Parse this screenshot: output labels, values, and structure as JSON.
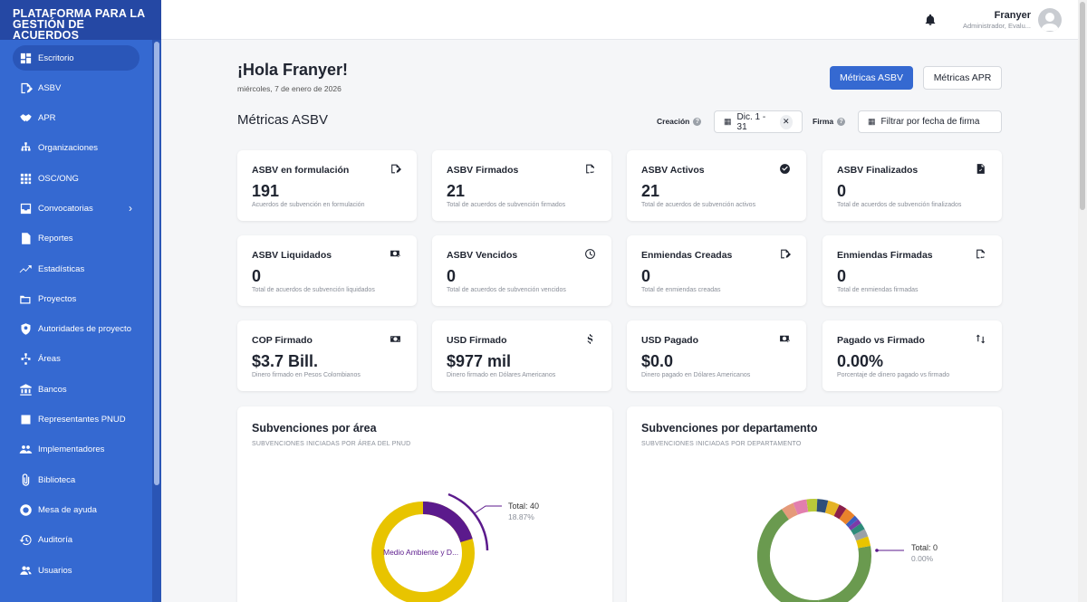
{
  "brand": {
    "line1": "PLATAFORMA PARA LA",
    "line2": "GESTIÓN DE ACUERDOS"
  },
  "sidebar": {
    "items": [
      {
        "label": "Escritorio",
        "icon": "dashboard-icon",
        "active": true
      },
      {
        "label": "ASBV",
        "icon": "edit-doc-icon"
      },
      {
        "label": "APR",
        "icon": "handshake-icon"
      },
      {
        "label": "Organizaciones",
        "icon": "org-chart-icon"
      },
      {
        "label": "OSC/ONG",
        "icon": "grid-icon"
      },
      {
        "label": "Convocatorias",
        "icon": "inbox-icon"
      },
      {
        "label": "Reportes",
        "icon": "report-icon"
      },
      {
        "label": "Estadísticas",
        "icon": "trend-icon"
      },
      {
        "label": "Proyectos",
        "icon": "folders-icon"
      },
      {
        "label": "Autoridades de proyecto",
        "icon": "shield-icon"
      },
      {
        "label": "Áreas",
        "icon": "hierarchy-icon"
      },
      {
        "label": "Bancos",
        "icon": "bank-icon"
      },
      {
        "label": "Representantes PNUD",
        "icon": "badge-icon"
      },
      {
        "label": "Implementadores",
        "icon": "people-icon"
      },
      {
        "label": "Biblioteca",
        "icon": "paperclip-icon"
      },
      {
        "label": "Mesa de ayuda",
        "icon": "support-icon"
      },
      {
        "label": "Auditoría",
        "icon": "history-icon"
      },
      {
        "label": "Usuarios",
        "icon": "users-icon"
      }
    ]
  },
  "topbar": {
    "user_name": "Franyer",
    "user_role": "Administrador, Evalu..."
  },
  "main": {
    "greeting": "¡Hola Franyer!",
    "date": "miércoles, 7 de enero de 2026",
    "btn_asbv": "Métricas ASBV",
    "btn_apr": "Métricas APR",
    "section_title": "Métricas ASBV",
    "filter_creacion_label": "Creación",
    "filter_creacion_value": "Dic. 1 - 31",
    "filter_firma_label": "Firma",
    "filter_firma_placeholder": "Filtrar por fecha de firma"
  },
  "cards": [
    {
      "title": "ASBV en formulación",
      "value": "191",
      "sub": "Acuerdos de subvención en formulación",
      "icon": "edit-doc-icon"
    },
    {
      "title": "ASBV Firmados",
      "value": "21",
      "sub": "Total de acuerdos de subvención firmados",
      "icon": "signed-doc-icon"
    },
    {
      "title": "ASBV Activos",
      "value": "21",
      "sub": "Total de acuerdos de subvención activos",
      "icon": "check-circle-icon"
    },
    {
      "title": "ASBV Finalizados",
      "value": "0",
      "sub": "Total de acuerdos de subvención finalizados",
      "icon": "finished-doc-icon"
    },
    {
      "title": "ASBV Liquidados",
      "value": "0",
      "sub": "Total de acuerdos de subvención liquidados",
      "icon": "money-check-icon"
    },
    {
      "title": "ASBV Vencidos",
      "value": "0",
      "sub": "Total de acuerdos de subvención vencidos",
      "icon": "clock-icon"
    },
    {
      "title": "Enmiendas Creadas",
      "value": "0",
      "sub": "Total de enmiendas creadas",
      "icon": "edit-doc-icon"
    },
    {
      "title": "Enmiendas Firmadas",
      "value": "0",
      "sub": "Total de enmiendas firmadas",
      "icon": "signed-doc-icon"
    },
    {
      "title": "COP Firmado",
      "value": "$3.7 Bill.",
      "sub": "Dinero firmado en Pesos Colombianos",
      "icon": "banknote-icon"
    },
    {
      "title": "USD Firmado",
      "value": "$977 mil",
      "sub": "Dinero firmado en Dólares Americanos",
      "icon": "dollar-icon"
    },
    {
      "title": "USD Pagado",
      "value": "$0.0",
      "sub": "Dinero pagado en Dólares Americanos",
      "icon": "money-check-icon"
    },
    {
      "title": "Pagado vs Firmado",
      "value": "0.00%",
      "sub": "Porcentaje de dinero pagado vs firmado",
      "icon": "swap-arrows-icon"
    }
  ],
  "panels": {
    "area": {
      "title": "Subvenciones por área",
      "subtitle": "SUBVENCIONES INICIADAS POR ÁREA DEL PNUD",
      "total_label": "Total: 40",
      "total_pct": "18.87%",
      "slice_label": "Medio Ambiente y D..."
    },
    "departamento": {
      "title": "Subvenciones por departamento",
      "subtitle": "SUBVENCIONES INICIADAS POR DEPARTAMENTO",
      "total_label": "Total: 0",
      "total_pct": "0.00%"
    }
  },
  "colors": {
    "sidebar": "#3569d1",
    "brand_bg": "#2548a4",
    "accent": "#3569d1",
    "area_main": "#e8c400",
    "area_highlight": "#5b1a8c",
    "dept_main": "#6a9a4f"
  }
}
